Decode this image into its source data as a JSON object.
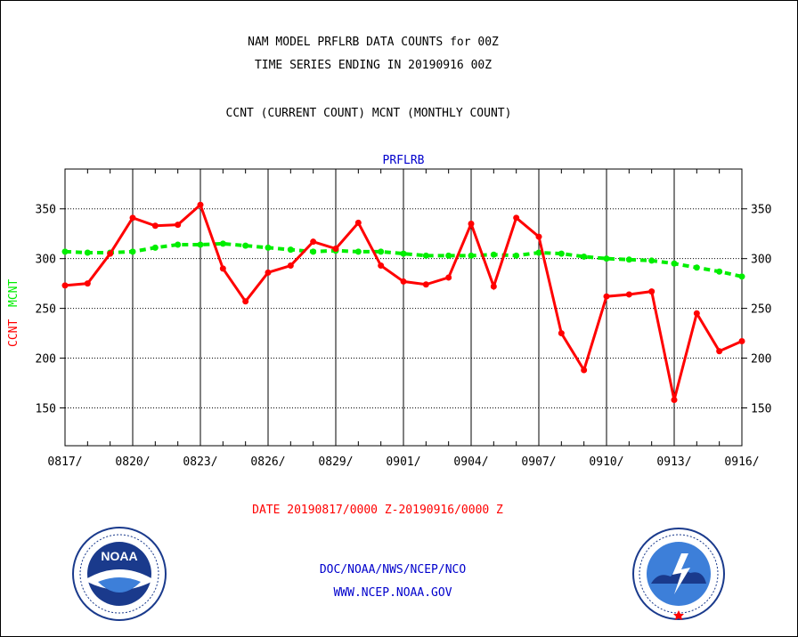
{
  "header": {
    "title_line1": "NAM MODEL PRFLRB DATA COUNTS for 00Z",
    "title_line2": "TIME SERIES ENDING IN 20190916 00Z",
    "subtitle": "CCNT (CURRENT COUNT) MCNT (MONTHLY COUNT)"
  },
  "footer": {
    "date_range": "DATE 20190817/0000 Z-20190916/0000 Z",
    "agency_line": "DOC/NOAA/NWS/NCEP/NCO",
    "url": "WWW.NCEP.NOAA.GOV"
  },
  "logos": {
    "left_name": "noaa-logo",
    "left_text": "NOAA",
    "right_name": "national-weather-service-logo"
  },
  "colors": {
    "ccnt": "#ff0000",
    "mcnt": "#00ee00",
    "plot_title": "#0000cc",
    "date_range": "#ff0000",
    "footer_text": "#0000cc"
  },
  "chart_data": {
    "type": "line",
    "title": "PRFLRB",
    "ylabel_series_1": "CCNT",
    "ylabel_series_2": "MCNT",
    "ylim": [
      112,
      390
    ],
    "yticks": [
      150,
      200,
      250,
      300,
      350
    ],
    "grid": true,
    "x_tick_labels": [
      "0817/",
      "0820/",
      "0823/",
      "0826/",
      "0829/",
      "0901/",
      "0904/",
      "0907/",
      "0910/",
      "0913/",
      "0916/"
    ],
    "x_tick_days": [
      0,
      3,
      6,
      9,
      12,
      15,
      18,
      21,
      24,
      27,
      30
    ],
    "x_days": [
      0,
      1,
      2,
      3,
      4,
      5,
      6,
      7,
      8,
      9,
      10,
      11,
      12,
      13,
      14,
      15,
      16,
      17,
      18,
      19,
      20,
      21,
      22,
      23,
      24,
      25,
      26,
      27,
      28,
      29,
      30
    ],
    "series": [
      {
        "name": "CCNT",
        "values": [
          273,
          275,
          305,
          341,
          333,
          334,
          354,
          290,
          257,
          286,
          293,
          317,
          310,
          336,
          293,
          277,
          274,
          281,
          335,
          272,
          341,
          322,
          225,
          188,
          262,
          264,
          267,
          158,
          245,
          207,
          217
        ]
      },
      {
        "name": "MCNT",
        "values": [
          307,
          306,
          306,
          307,
          311,
          314,
          314,
          315,
          313,
          311,
          309,
          307,
          308,
          307,
          307,
          305,
          303,
          303,
          303,
          304,
          303,
          306,
          305,
          302,
          300,
          299,
          298,
          295,
          291,
          287,
          282
        ]
      }
    ]
  }
}
